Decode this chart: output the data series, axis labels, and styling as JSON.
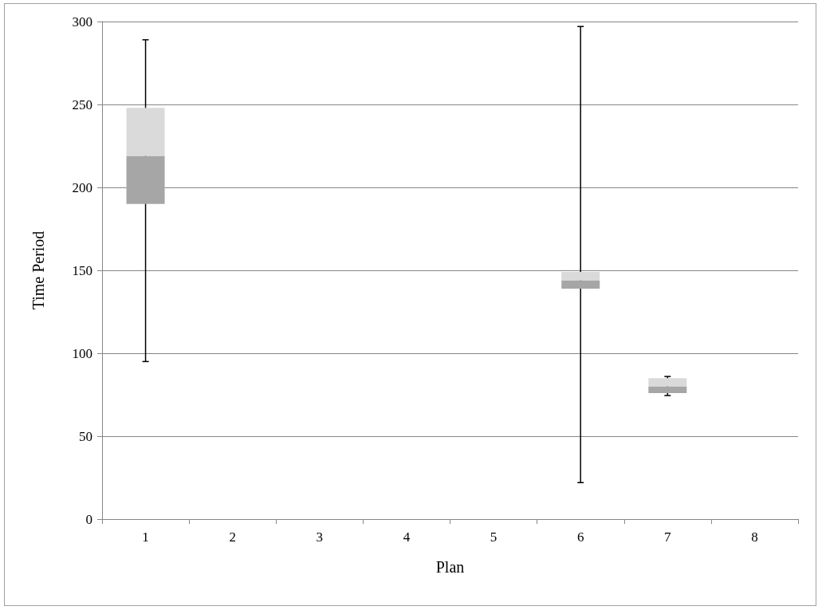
{
  "chart_data": {
    "type": "box",
    "xlabel": "Plan",
    "ylabel": "Time Period",
    "categories": [
      "1",
      "2",
      "3",
      "4",
      "5",
      "6",
      "7",
      "8"
    ],
    "series": [
      {
        "color": "#a6a6a6",
        "boxes": [
          {
            "low": 95,
            "q1": 190,
            "median": 219,
            "q3": 248,
            "high": 289
          },
          null,
          null,
          null,
          null,
          {
            "low": 22,
            "q1": 139,
            "median": 144,
            "q3": 149,
            "high": 297
          },
          {
            "low": 74.5,
            "q1": 76,
            "median": 80,
            "q3": 85,
            "high": 86
          },
          null
        ]
      }
    ],
    "ylim": [
      0,
      300
    ],
    "yticks": [
      0,
      50,
      100,
      150,
      200,
      250,
      300
    ],
    "grid": "y"
  }
}
